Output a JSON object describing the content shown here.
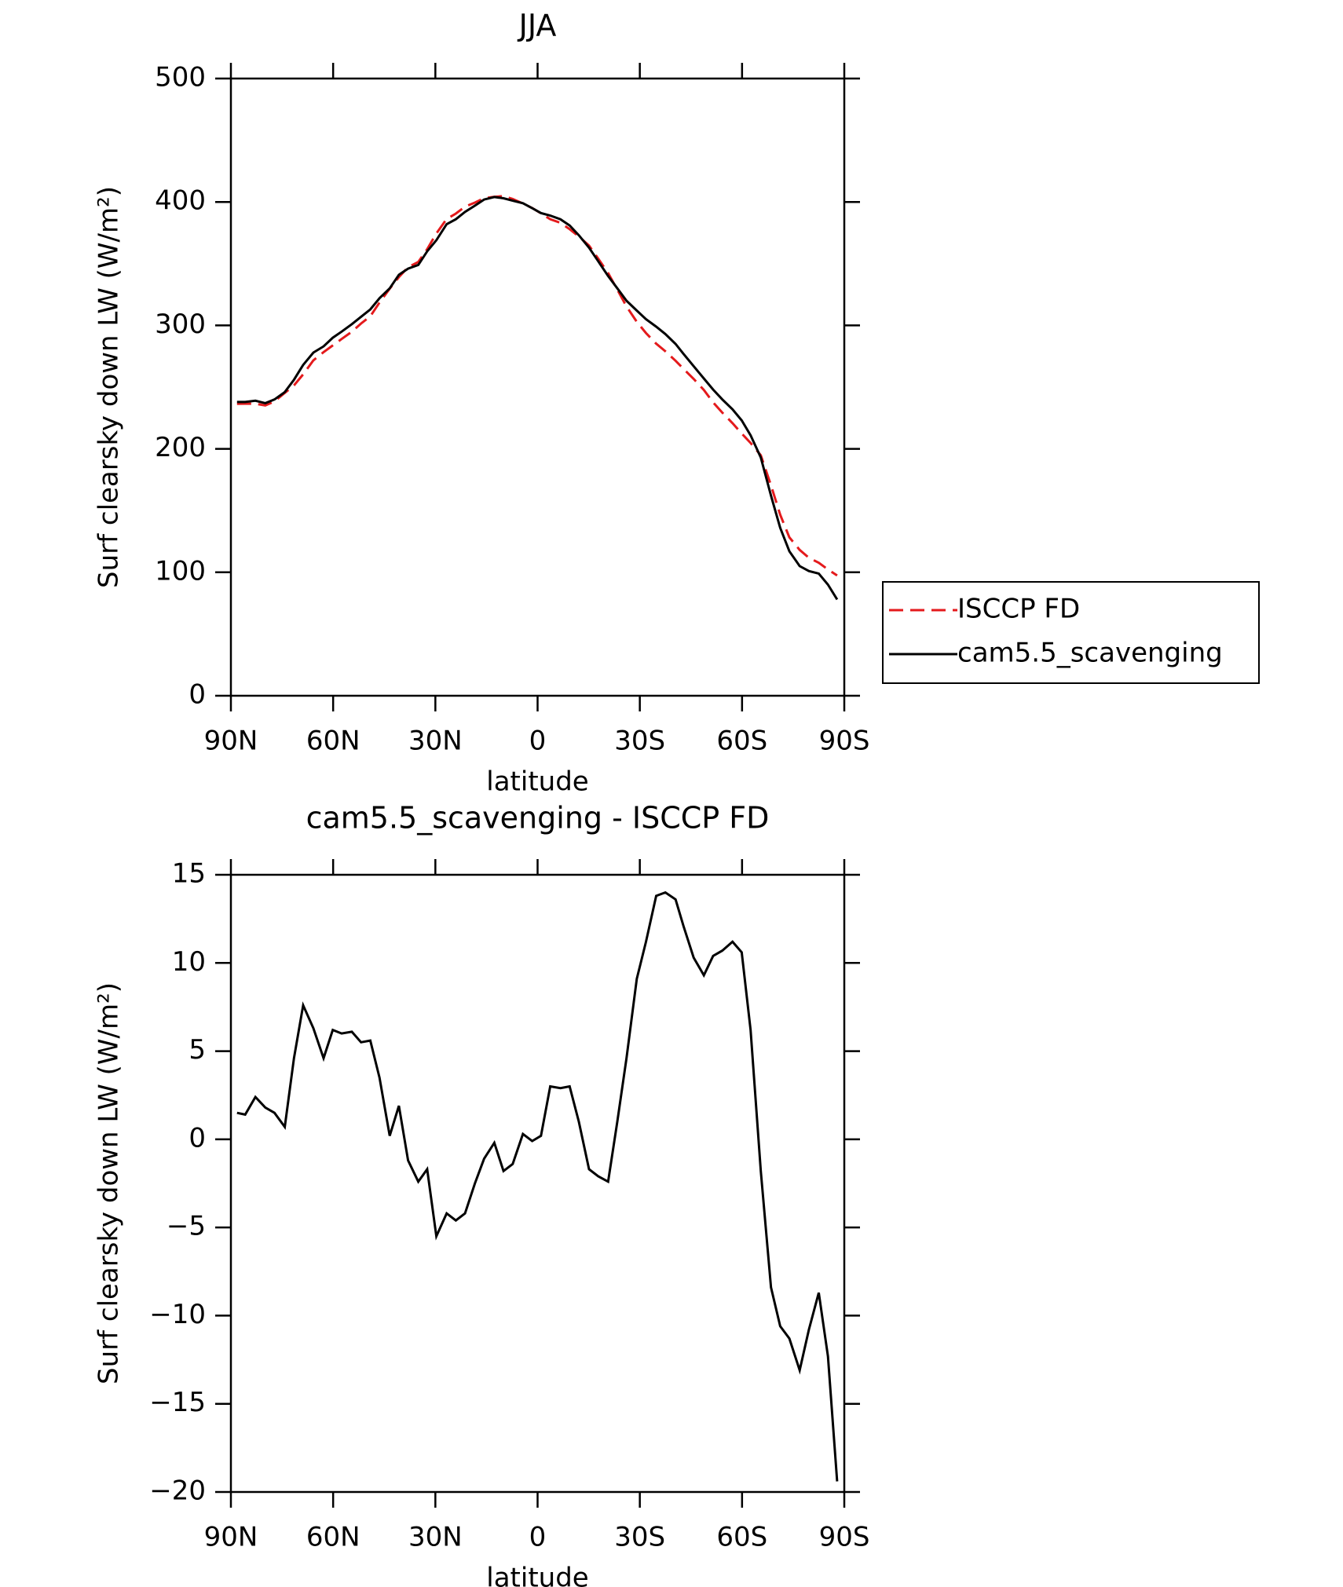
{
  "chart_data": [
    {
      "type": "line",
      "title": "JJA",
      "x_label": "latitude",
      "y_label": "Surf clearsky down LW (W/m²)",
      "x": [
        88.2,
        85.8,
        82.8,
        79.9,
        77.2,
        74.2,
        71.5,
        68.8,
        65.8,
        62.8,
        60.1,
        57.5,
        54.5,
        51.8,
        49.1,
        46.4,
        43.4,
        40.7,
        38,
        35,
        32.4,
        29.7,
        26.7,
        24,
        21.3,
        18.4,
        15.7,
        12.7,
        10,
        7.3,
        4.3,
        1.6,
        -1,
        -3.7,
        -6.7,
        -9.4,
        -12.1,
        -15.1,
        -17.8,
        -20.7,
        -23.4,
        -26.1,
        -29.1,
        -31.8,
        -34.8,
        -37.5,
        -40.5,
        -42.8,
        -45.8,
        -48.8,
        -51.5,
        -54.2,
        -57.2,
        -59.9,
        -62.5,
        -65.5,
        -68.5,
        -71.2,
        -73.9,
        -76.9,
        -79.6,
        -82.5,
        -85.2,
        -87.9
      ],
      "series": [
        {
          "name": "ISCCP FD",
          "color": "#e41a1c",
          "dash": true,
          "values": [
            236.5,
            236.6,
            236.6,
            235.2,
            238.5,
            245.3,
            251.4,
            260.4,
            271.7,
            278.4,
            283.8,
            289,
            294.9,
            301.5,
            307.4,
            318.5,
            329.8,
            339.1,
            347.2,
            351.4,
            361.7,
            374.5,
            386.2,
            390.6,
            396.2,
            399.5,
            403.1,
            404.2,
            404.8,
            402.4,
            398.7,
            395.1,
            390.8,
            386,
            383.1,
            378,
            372,
            364.7,
            354.1,
            342.4,
            329,
            315.4,
            302.9,
            293.8,
            285.2,
            279,
            271.4,
            264.9,
            256.7,
            247.7,
            237.6,
            229.3,
            220.8,
            212.4,
            204.8,
            194.8,
            170.4,
            146.6,
            128.3,
            118.1,
            111.8,
            107.7,
            102.3,
            97.4
          ]
        },
        {
          "name": "cam5.5_scavenging",
          "color": "#000000",
          "dash": false,
          "values": [
            238,
            238,
            239,
            237,
            240,
            246,
            256,
            268,
            278,
            283,
            290,
            295,
            301,
            307,
            313,
            322,
            330,
            341,
            346,
            349,
            360,
            369,
            382,
            386,
            392,
            397,
            402,
            404,
            403,
            401,
            399,
            395,
            391,
            389,
            386,
            381,
            373,
            363,
            352,
            340,
            330,
            320,
            312,
            305,
            299,
            293,
            285,
            277,
            267,
            257,
            248,
            240,
            232,
            223,
            211,
            193,
            162,
            136,
            117,
            105,
            101,
            99,
            90,
            78
          ]
        }
      ],
      "xlim": [
        90,
        -90
      ],
      "xticks": [
        {
          "value": 90,
          "label": "90N"
        },
        {
          "value": 60,
          "label": "60N"
        },
        {
          "value": 30,
          "label": "30N"
        },
        0,
        {
          "value": -30,
          "label": "30S"
        },
        {
          "value": -60,
          "label": "60S"
        },
        {
          "value": -90,
          "label": "90S"
        }
      ],
      "ylim": [
        0,
        500
      ],
      "yticks": [
        0,
        100,
        200,
        300,
        400,
        500
      ],
      "legend": "right"
    },
    {
      "type": "line",
      "title": "cam5.5_scavenging - ISCCP FD",
      "x_label": "latitude",
      "y_label": "Surf clearsky down LW (W/m²)",
      "x": [
        88.2,
        85.8,
        82.8,
        79.9,
        77.2,
        74.2,
        71.5,
        68.8,
        65.8,
        62.8,
        60.1,
        57.5,
        54.5,
        51.8,
        49.1,
        46.4,
        43.4,
        40.7,
        38,
        35,
        32.4,
        29.7,
        26.7,
        24,
        21.3,
        18.4,
        15.7,
        12.7,
        10,
        7.3,
        4.3,
        1.6,
        -1,
        -3.7,
        -6.7,
        -9.4,
        -12.1,
        -15.1,
        -17.8,
        -20.7,
        -23.4,
        -26.1,
        -29.1,
        -31.8,
        -34.8,
        -37.5,
        -40.5,
        -42.8,
        -45.8,
        -48.8,
        -51.5,
        -54.2,
        -57.2,
        -59.9,
        -62.5,
        -65.5,
        -68.5,
        -71.2,
        -73.9,
        -76.9,
        -79.6,
        -82.5,
        -85.2,
        -87.9
      ],
      "series": [
        {
          "color": "#000000",
          "dash": false,
          "values": [
            1.5,
            1.4,
            2.4,
            1.8,
            1.5,
            0.7,
            4.6,
            7.6,
            6.3,
            4.6,
            6.2,
            6,
            6.1,
            5.5,
            5.6,
            3.5,
            0.2,
            1.9,
            -1.2,
            -2.4,
            -1.7,
            -5.5,
            -4.2,
            -4.6,
            -4.2,
            -2.5,
            -1.1,
            -0.2,
            -1.8,
            -1.4,
            0.3,
            -0.1,
            0.2,
            3,
            2.9,
            3,
            1,
            -1.7,
            -2.1,
            -2.4,
            1,
            4.6,
            9.1,
            11.2,
            13.8,
            14,
            13.6,
            12.1,
            10.3,
            9.3,
            10.4,
            10.7,
            11.2,
            10.6,
            6.2,
            -1.8,
            -8.4,
            -10.6,
            -11.3,
            -13.1,
            -10.8,
            -8.7,
            -12.3,
            -19.4
          ]
        }
      ],
      "xlim": [
        90,
        -90
      ],
      "xticks": [
        {
          "value": 90,
          "label": "90N"
        },
        {
          "value": 60,
          "label": "60N"
        },
        {
          "value": 30,
          "label": "30N"
        },
        0,
        {
          "value": -30,
          "label": "30S"
        },
        {
          "value": -60,
          "label": "60S"
        },
        {
          "value": -90,
          "label": "90S"
        }
      ],
      "ylim": [
        -20,
        15
      ],
      "yticks": [
        {
          "value": -20,
          "label": "−20"
        },
        {
          "value": -15,
          "label": "−15"
        },
        {
          "value": -10,
          "label": "−10"
        },
        {
          "value": -5,
          "label": "−5"
        },
        0,
        5,
        10,
        15
      ]
    }
  ]
}
